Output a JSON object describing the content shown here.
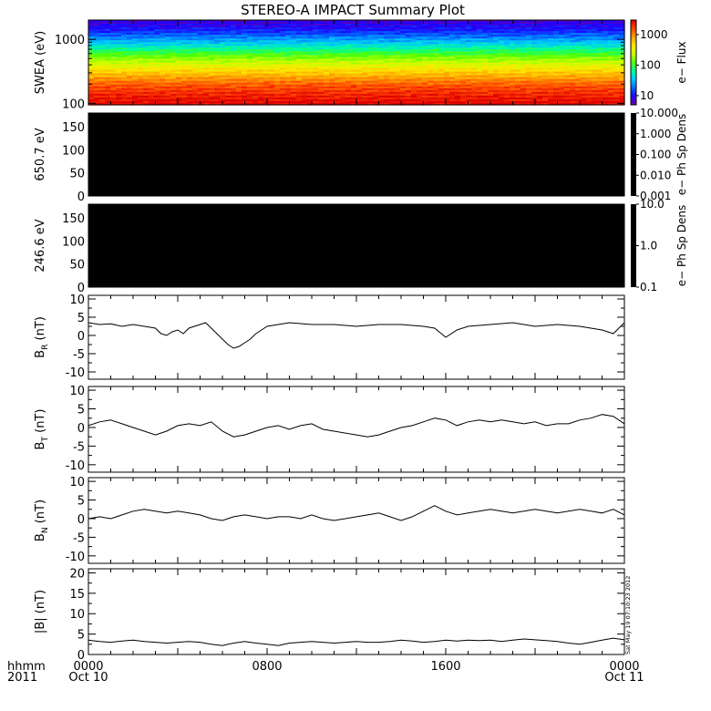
{
  "title": "STEREO-A IMPACT Summary Plot",
  "stamp": "Sat May 19 07:10:23 2012",
  "time_axis": {
    "corner_labels": [
      "hhmm",
      "2011"
    ],
    "ticks": [
      {
        "hour": 0,
        "labels": [
          "0000",
          "Oct 10"
        ]
      },
      {
        "hour": 8,
        "labels": [
          "0800",
          ""
        ]
      },
      {
        "hour": 16,
        "labels": [
          "1600",
          ""
        ]
      },
      {
        "hour": 24,
        "labels": [
          "0000",
          "Oct 11"
        ]
      }
    ],
    "range_hours": [
      0,
      24
    ]
  },
  "colorbar_colors": [
    "#6a00a8",
    "#1e00ff",
    "#0066ff",
    "#00c8ff",
    "#00ff9a",
    "#54ff00",
    "#c8ff00",
    "#ffe600",
    "#ff9d00",
    "#ff4500",
    "#e00000"
  ],
  "chart_data": [
    {
      "type": "heatmap",
      "id": "swea",
      "ylabel": "SWEA (eV)",
      "ylog": true,
      "ylim": [
        95,
        2000
      ],
      "yticks": [
        {
          "v": 100,
          "label": "100"
        },
        {
          "v": 1000,
          "label": "1000"
        }
      ],
      "colorbar": {
        "label": "e− Flux",
        "log": true,
        "range": [
          5,
          3000
        ],
        "ticks": [
          {
            "v": 10,
            "label": "10"
          },
          {
            "v": 100,
            "label": "100"
          },
          {
            "v": 1000,
            "label": "1000"
          }
        ]
      },
      "band_color_offsets": [
        {
          "log_e": 3.3,
          "c": 0.05
        },
        {
          "log_e": 3.15,
          "c": 0.12
        },
        {
          "log_e": 3.0,
          "c": 0.25
        },
        {
          "log_e": 2.85,
          "c": 0.4
        },
        {
          "log_e": 2.7,
          "c": 0.55
        },
        {
          "log_e": 2.55,
          "c": 0.68
        },
        {
          "log_e": 2.4,
          "c": 0.8
        },
        {
          "log_e": 2.25,
          "c": 0.9
        },
        {
          "log_e": 2.1,
          "c": 0.96
        },
        {
          "log_e": 1.98,
          "c": 1.0
        }
      ]
    },
    {
      "type": "heatmap",
      "id": "pad650",
      "ylabel": "650.7 eV",
      "ylim": [
        0,
        180
      ],
      "yticks": [
        {
          "v": 0,
          "label": "0"
        },
        {
          "v": 50,
          "label": "50"
        },
        {
          "v": 100,
          "label": "100"
        },
        {
          "v": 150,
          "label": "150"
        }
      ],
      "fill": "#000000",
      "colorbar": {
        "label": "e− Ph Sp Dens",
        "log": true,
        "range": [
          0.001,
          10
        ],
        "ticks": [
          {
            "v": 10,
            "label": "10.000"
          },
          {
            "v": 1,
            "label": "1.000"
          },
          {
            "v": 0.1,
            "label": "0.100"
          },
          {
            "v": 0.01,
            "label": "0.010"
          },
          {
            "v": 0.001,
            "label": "0.001"
          }
        ]
      }
    },
    {
      "type": "heatmap",
      "id": "pad246",
      "ylabel": "246.6 eV",
      "ylim": [
        0,
        180
      ],
      "yticks": [
        {
          "v": 0,
          "label": "0"
        },
        {
          "v": 50,
          "label": "50"
        },
        {
          "v": 100,
          "label": "100"
        },
        {
          "v": 150,
          "label": "150"
        }
      ],
      "fill": "#000000",
      "colorbar": {
        "label": "e− Ph Sp Dens",
        "log": true,
        "range": [
          0.1,
          10
        ],
        "ticks": [
          {
            "v": 10,
            "label": "10.0"
          },
          {
            "v": 1,
            "label": "1.0"
          },
          {
            "v": 0.1,
            "label": "0.1"
          }
        ]
      }
    },
    {
      "type": "line",
      "id": "br",
      "ylabel_main": "B",
      "ylabel_sub": "R",
      "ylabel_unit": " (nT)",
      "ylim": [
        -12,
        11
      ],
      "yticks": [
        -10,
        -5,
        0,
        5,
        10
      ],
      "x": [
        0,
        0.5,
        1,
        1.5,
        2,
        2.5,
        3,
        3.25,
        3.5,
        3.75,
        4,
        4.25,
        4.5,
        4.75,
        5,
        5.25,
        5.5,
        5.75,
        6,
        6.25,
        6.5,
        6.75,
        7,
        7.25,
        7.5,
        7.75,
        8,
        8.5,
        9,
        10,
        11,
        12,
        13,
        14,
        15,
        15.5,
        16,
        16.5,
        17,
        18,
        19,
        20,
        21,
        22,
        23,
        23.5,
        24
      ],
      "values": [
        3.5,
        3,
        3.2,
        2.5,
        3,
        2.5,
        2,
        0.5,
        0,
        1,
        1.5,
        0.5,
        2,
        2.5,
        3,
        3.5,
        2,
        0.5,
        -1,
        -2.5,
        -3.5,
        -3,
        -2,
        -1,
        0.5,
        1.5,
        2.5,
        3,
        3.5,
        3,
        3,
        2.5,
        3,
        3,
        2.5,
        2,
        -0.5,
        1.5,
        2.5,
        3,
        3.5,
        2.5,
        3,
        2.5,
        1.5,
        0.5,
        3.5
      ]
    },
    {
      "type": "line",
      "id": "bt",
      "ylabel_main": "B",
      "ylabel_sub": "T",
      "ylabel_unit": " (nT)",
      "ylim": [
        -12,
        11
      ],
      "yticks": [
        -10,
        -5,
        0,
        5,
        10
      ],
      "x": [
        0,
        0.5,
        1,
        1.5,
        2,
        2.5,
        3,
        3.5,
        4,
        4.5,
        5,
        5.5,
        6,
        6.5,
        7,
        7.5,
        8,
        8.5,
        9,
        9.5,
        10,
        10.5,
        11,
        11.5,
        12,
        12.5,
        13,
        13.5,
        14,
        14.5,
        15,
        15.5,
        16,
        16.5,
        17,
        17.5,
        18,
        18.5,
        19,
        19.5,
        20,
        20.5,
        21,
        21.5,
        22,
        22.5,
        23,
        23.5,
        24
      ],
      "values": [
        0.5,
        1.5,
        2,
        1,
        0,
        -1,
        -2,
        -1,
        0.5,
        1,
        0.5,
        1.5,
        -1,
        -2.5,
        -2,
        -1,
        0,
        0.5,
        -0.5,
        0.5,
        1,
        -0.5,
        -1,
        -1.5,
        -2,
        -2.5,
        -2,
        -1,
        0,
        0.5,
        1.5,
        2.5,
        2,
        0.5,
        1.5,
        2,
        1.5,
        2,
        1.5,
        1,
        1.5,
        0.5,
        1,
        1,
        2,
        2.5,
        3.5,
        3,
        1
      ]
    },
    {
      "type": "line",
      "id": "bn",
      "ylabel_main": "B",
      "ylabel_sub": "N",
      "ylabel_unit": " (nT)",
      "ylim": [
        -12,
        11
      ],
      "yticks": [
        -10,
        -5,
        0,
        5,
        10
      ],
      "x": [
        0,
        0.5,
        1,
        1.5,
        2,
        2.5,
        3,
        3.5,
        4,
        4.5,
        5,
        5.5,
        6,
        6.5,
        7,
        7.5,
        8,
        8.5,
        9,
        9.5,
        10,
        10.5,
        11,
        11.5,
        12,
        12.5,
        13,
        13.5,
        14,
        14.5,
        15,
        15.5,
        16,
        16.5,
        17,
        17.5,
        18,
        18.5,
        19,
        19.5,
        20,
        20.5,
        21,
        21.5,
        22,
        22.5,
        23,
        23.5,
        24
      ],
      "values": [
        0,
        0.5,
        0,
        1,
        2,
        2.5,
        2,
        1.5,
        2,
        1.5,
        1,
        0,
        -0.5,
        0.5,
        1,
        0.5,
        0,
        0.5,
        0.5,
        0,
        1,
        0,
        -0.5,
        0,
        0.5,
        1,
        1.5,
        0.5,
        -0.5,
        0.5,
        2,
        3.5,
        2,
        1,
        1.5,
        2,
        2.5,
        2,
        1.5,
        2,
        2.5,
        2,
        1.5,
        2,
        2.5,
        2,
        1.5,
        2.5,
        1
      ]
    },
    {
      "type": "line",
      "id": "bmag",
      "ylabel_main": "|B| (nT)",
      "ylim": [
        0,
        21
      ],
      "yticks": [
        0,
        5,
        10,
        15,
        20
      ],
      "x": [
        0,
        0.5,
        1,
        1.5,
        2,
        2.5,
        3,
        3.5,
        4,
        4.5,
        5,
        5.5,
        6,
        6.5,
        7,
        7.5,
        8,
        8.5,
        9,
        9.5,
        10,
        10.5,
        11,
        11.5,
        12,
        12.5,
        13,
        13.5,
        14,
        14.5,
        15,
        15.5,
        16,
        16.5,
        17,
        17.5,
        18,
        18.5,
        19,
        19.5,
        20,
        20.5,
        21,
        21.5,
        22,
        22.5,
        23,
        23.5,
        24
      ],
      "values": [
        3.5,
        3.2,
        3,
        3.3,
        3.5,
        3.2,
        3,
        2.8,
        3,
        3.2,
        3,
        2.5,
        2.2,
        2.8,
        3.2,
        2.8,
        2.5,
        2.2,
        2.8,
        3,
        3.2,
        3,
        2.8,
        3,
        3.2,
        3,
        3,
        3.2,
        3.5,
        3.3,
        3,
        3.2,
        3.5,
        3.3,
        3.5,
        3.4,
        3.5,
        3.2,
        3.5,
        3.8,
        3.6,
        3.4,
        3.2,
        2.8,
        2.5,
        3,
        3.5,
        4,
        3.6
      ]
    }
  ]
}
